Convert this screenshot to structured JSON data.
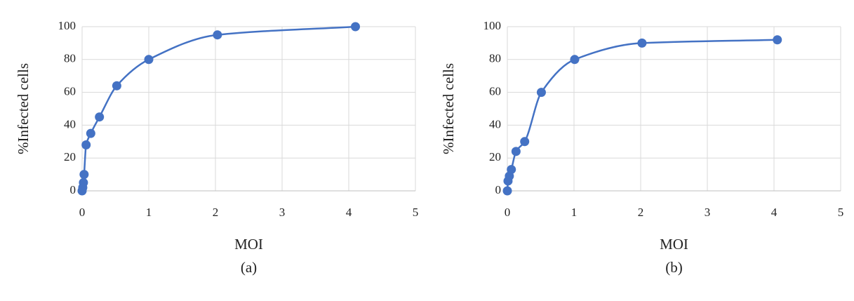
{
  "chart_data": [
    {
      "type": "scatter-line",
      "ylabel": "%Infected cells",
      "xlabel": "MOI",
      "caption": "(a)",
      "series": [
        {
          "color": "#4472c4",
          "x": [
            0,
            0.01,
            0.02,
            0.03,
            0.06,
            0.13,
            0.26,
            0.52,
            1.0,
            2.03,
            4.1
          ],
          "values": [
            0,
            2,
            5,
            10,
            28,
            35,
            45,
            64,
            80,
            95,
            100
          ]
        }
      ],
      "xlim": [
        0,
        5
      ],
      "xticks": [
        0,
        1,
        2,
        3,
        4,
        5
      ],
      "ylim": [
        0,
        100
      ],
      "yticks": [
        0,
        20,
        40,
        60,
        80,
        100
      ],
      "grid": true
    },
    {
      "type": "scatter-line",
      "ylabel": "%Infected cells",
      "xlabel": "MOI",
      "caption": "(b)",
      "series": [
        {
          "color": "#4472c4",
          "x": [
            0,
            0.01,
            0.03,
            0.06,
            0.13,
            0.26,
            0.51,
            1.01,
            2.02,
            4.05
          ],
          "values": [
            0,
            6,
            9,
            13,
            24,
            30,
            60,
            80,
            90,
            92
          ]
        }
      ],
      "xlim": [
        0,
        5
      ],
      "xticks": [
        0,
        1,
        2,
        3,
        4,
        5
      ],
      "ylim": [
        0,
        100
      ],
      "yticks": [
        0,
        20,
        40,
        60,
        80,
        100
      ],
      "grid": true
    }
  ]
}
